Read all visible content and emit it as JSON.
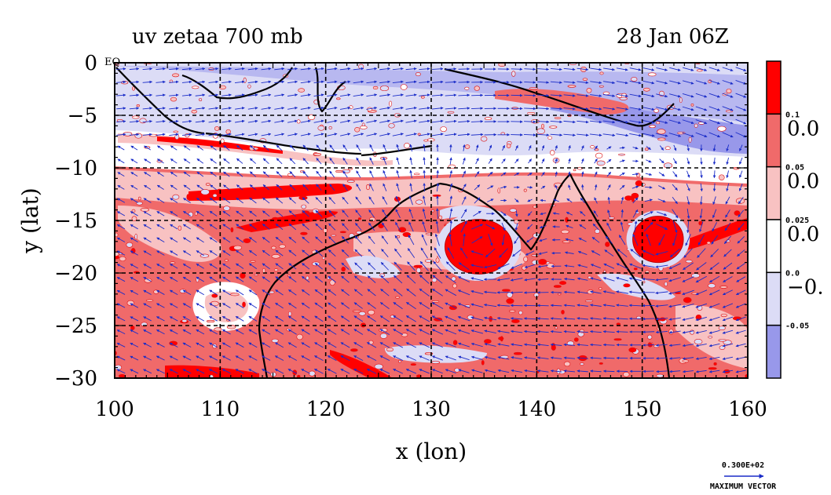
{
  "chart_data": {
    "type": "heatmap",
    "title": "uv zetaa 700 mb",
    "time_label": "28 Jan 06Z",
    "xlabel": "x (lon)",
    "ylabel": "y (lat)",
    "xlim": [
      100,
      160
    ],
    "ylim": [
      -30,
      0
    ],
    "x_ticks": [
      100,
      110,
      120,
      130,
      140,
      150,
      160
    ],
    "y_ticks": [
      0,
      -5,
      -10,
      -15,
      -20,
      -25,
      -30
    ],
    "y_tick_labels": [
      "0",
      "−5",
      "−10",
      "−15",
      "−20",
      "−25",
      "−30"
    ],
    "eq_label": "EQ",
    "grid": true,
    "colorbar": {
      "levels": [
        {
          "label": "0.1",
          "color": "#ff0000"
        },
        {
          "label": "0.05",
          "color": "#f06a6a"
        },
        {
          "label": "0.025",
          "color": "#f8c2c2"
        },
        {
          "label": "0.0",
          "color": "#ffffff"
        },
        {
          "label": "-0.05",
          "color": "#dcdcf6"
        },
        {
          "label": "",
          "color": "#9898ea"
        }
      ],
      "side_labels": [
        "0.0",
        "0.0",
        "0.0",
        "−0."
      ]
    },
    "vector_reference": {
      "value_label": "0.300E+02",
      "caption": "MAXIMUM VECTOR"
    },
    "vortices": [
      {
        "lon": 134.5,
        "lat": -17.5,
        "rx": 3.2,
        "ry": 2.6
      },
      {
        "lon": 151.5,
        "lat": -16.8,
        "rx": 2.4,
        "ry": 2.2
      }
    ],
    "colors": {
      "strong_pos": "#ff0000",
      "pos": "#f06a6a",
      "weak_pos": "#f8c2c2",
      "weak_neg": "#dcdcf6",
      "neg": "#9898ea",
      "vectors": "#1a2cc8",
      "coast": "#000000"
    }
  }
}
